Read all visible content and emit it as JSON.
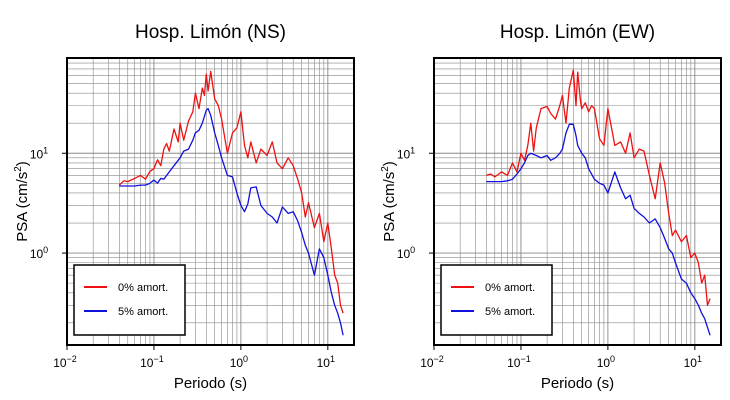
{
  "chart_data": [
    {
      "type": "line",
      "title": "Hosp. Limón (NS)",
      "xlabel": "Periodo (s)",
      "ylabel_main": "PSA (cm/s",
      "ylabel_sup": "2",
      "ylabel_close": ")",
      "xscale": "log",
      "yscale": "log",
      "xlim": [
        0.01,
        20
      ],
      "ylim": [
        0.12,
        90
      ],
      "grid": true,
      "legend_position": "bottom-left",
      "x_ticks": [
        {
          "base": "10",
          "exp": "−2"
        },
        {
          "base": "10",
          "exp": "−1"
        },
        {
          "base": "10",
          "exp": "0"
        },
        {
          "base": "10",
          "exp": "1"
        }
      ],
      "y_ticks": [
        {
          "base": "10",
          "exp": "0"
        },
        {
          "base": "10",
          "exp": "1"
        }
      ],
      "series": [
        {
          "name": "0% amort.",
          "color": "#ee1111",
          "x": [
            0.04,
            0.045,
            0.05,
            0.06,
            0.07,
            0.08,
            0.09,
            0.1,
            0.11,
            0.12,
            0.13,
            0.14,
            0.15,
            0.17,
            0.19,
            0.2,
            0.22,
            0.25,
            0.28,
            0.3,
            0.33,
            0.36,
            0.38,
            0.4,
            0.42,
            0.45,
            0.5,
            0.55,
            0.6,
            0.7,
            0.8,
            0.9,
            1.0,
            1.1,
            1.2,
            1.3,
            1.5,
            1.7,
            2.0,
            2.3,
            2.6,
            3.0,
            3.5,
            4.0,
            4.5,
            5.0,
            5.5,
            6.0,
            7.0,
            8.0,
            9.0,
            10.0,
            11.0,
            12.0,
            13.0,
            14.0,
            15.0
          ],
          "y": [
            4.8,
            5.3,
            5.2,
            5.6,
            6.0,
            5.5,
            6.6,
            7.0,
            8.6,
            7.5,
            11.0,
            12.5,
            10.5,
            17.5,
            13.0,
            20.0,
            13.5,
            21.0,
            26.0,
            40.0,
            28.0,
            45.0,
            38.0,
            62.0,
            42.0,
            66.0,
            35.0,
            30.0,
            22.0,
            10.0,
            16.0,
            18.0,
            26.0,
            12.0,
            9.0,
            13.0,
            8.0,
            11.0,
            9.5,
            13.0,
            8.0,
            7.0,
            9.0,
            7.5,
            5.5,
            4.0,
            2.3,
            3.2,
            1.8,
            2.5,
            1.3,
            2.0,
            1.1,
            0.6,
            0.5,
            0.3,
            0.25
          ]
        },
        {
          "name": "5% amort.",
          "color": "#1111dd",
          "x": [
            0.04,
            0.05,
            0.06,
            0.07,
            0.08,
            0.09,
            0.1,
            0.11,
            0.12,
            0.13,
            0.15,
            0.17,
            0.2,
            0.22,
            0.25,
            0.28,
            0.3,
            0.33,
            0.36,
            0.4,
            0.42,
            0.45,
            0.5,
            0.55,
            0.6,
            0.7,
            0.8,
            0.9,
            1.0,
            1.1,
            1.2,
            1.3,
            1.5,
            1.7,
            2.0,
            2.3,
            2.6,
            3.0,
            3.5,
            4.0,
            4.5,
            5.0,
            5.5,
            6.0,
            7.0,
            8.0,
            9.0,
            10.0,
            11.0,
            12.0,
            13.0,
            14.0,
            15.0
          ],
          "y": [
            4.7,
            4.7,
            4.7,
            4.8,
            4.8,
            5.0,
            5.4,
            5.0,
            5.6,
            5.5,
            6.5,
            7.5,
            9.0,
            10.5,
            11.0,
            13.5,
            16.0,
            17.0,
            20.0,
            27.0,
            28.0,
            24.0,
            16.0,
            12.0,
            9.0,
            6.0,
            5.8,
            4.0,
            3.0,
            2.6,
            3.1,
            4.5,
            4.6,
            3.0,
            2.5,
            2.3,
            2.0,
            2.9,
            2.5,
            2.6,
            2.1,
            1.6,
            1.2,
            1.0,
            0.6,
            1.1,
            0.9,
            0.6,
            0.4,
            0.3,
            0.25,
            0.2,
            0.15
          ]
        }
      ]
    },
    {
      "type": "line",
      "title": "Hosp. Limón (EW)",
      "xlabel": "Periodo (s)",
      "ylabel_main": "PSA (cm/s",
      "ylabel_sup": "2",
      "ylabel_close": ")",
      "xscale": "log",
      "yscale": "log",
      "xlim": [
        0.01,
        20
      ],
      "ylim": [
        0.12,
        90
      ],
      "grid": true,
      "legend_position": "bottom-left",
      "x_ticks": [
        {
          "base": "10",
          "exp": "−2"
        },
        {
          "base": "10",
          "exp": "−1"
        },
        {
          "base": "10",
          "exp": "0"
        },
        {
          "base": "10",
          "exp": "1"
        }
      ],
      "y_ticks": [
        {
          "base": "10",
          "exp": "0"
        },
        {
          "base": "10",
          "exp": "1"
        }
      ],
      "series": [
        {
          "name": "0% amort.",
          "color": "#ee1111",
          "x": [
            0.04,
            0.045,
            0.05,
            0.06,
            0.07,
            0.08,
            0.09,
            0.1,
            0.11,
            0.12,
            0.13,
            0.14,
            0.15,
            0.17,
            0.19,
            0.2,
            0.22,
            0.25,
            0.28,
            0.3,
            0.33,
            0.36,
            0.4,
            0.43,
            0.45,
            0.48,
            0.5,
            0.55,
            0.6,
            0.65,
            0.7,
            0.8,
            0.9,
            1.0,
            1.2,
            1.4,
            1.6,
            1.8,
            2.0,
            2.3,
            2.6,
            3.0,
            3.5,
            4.0,
            4.5,
            5.0,
            5.5,
            6.0,
            7.0,
            8.0,
            9.0,
            10.0,
            11.0,
            12.0,
            13.0,
            14.0,
            15.0
          ],
          "y": [
            6.0,
            6.2,
            5.8,
            6.5,
            6.0,
            8.0,
            6.5,
            10.0,
            8.5,
            12.0,
            20.0,
            10.5,
            18.0,
            28.0,
            29.0,
            29.5,
            25.0,
            22.0,
            30.0,
            38.0,
            20.0,
            45.0,
            68.0,
            30.0,
            65.0,
            35.0,
            28.0,
            32.0,
            26.0,
            30.0,
            28.0,
            14.0,
            12.0,
            28.0,
            12.0,
            13.0,
            10.0,
            16.0,
            9.0,
            11.0,
            10.5,
            6.0,
            3.5,
            8.0,
            5.0,
            2.5,
            1.5,
            1.7,
            1.3,
            1.5,
            0.9,
            1.0,
            0.8,
            0.5,
            0.6,
            0.3,
            0.35
          ]
        },
        {
          "name": "5% amort.",
          "color": "#1111dd",
          "x": [
            0.04,
            0.05,
            0.06,
            0.07,
            0.08,
            0.09,
            0.1,
            0.11,
            0.12,
            0.13,
            0.15,
            0.17,
            0.2,
            0.22,
            0.25,
            0.28,
            0.3,
            0.33,
            0.36,
            0.4,
            0.43,
            0.45,
            0.5,
            0.55,
            0.6,
            0.7,
            0.8,
            0.9,
            1.0,
            1.2,
            1.4,
            1.6,
            1.8,
            2.0,
            2.3,
            2.6,
            3.0,
            3.5,
            4.0,
            4.5,
            5.0,
            5.5,
            6.0,
            7.0,
            8.0,
            9.0,
            10.0,
            11.0,
            12.0,
            13.0,
            14.0,
            15.0
          ],
          "y": [
            5.2,
            5.2,
            5.2,
            5.3,
            5.5,
            6.2,
            7.0,
            8.0,
            9.5,
            10.0,
            9.5,
            9.0,
            9.5,
            8.5,
            9.0,
            10.0,
            11.0,
            16.0,
            19.5,
            19.5,
            15.0,
            12.0,
            10.0,
            9.0,
            7.0,
            5.5,
            5.0,
            4.8,
            4.0,
            6.5,
            4.5,
            3.5,
            3.8,
            2.8,
            2.5,
            2.3,
            2.0,
            2.2,
            1.8,
            1.4,
            1.1,
            1.0,
            0.8,
            0.55,
            0.5,
            0.4,
            0.35,
            0.3,
            0.25,
            0.22,
            0.18,
            0.15
          ]
        }
      ]
    }
  ]
}
